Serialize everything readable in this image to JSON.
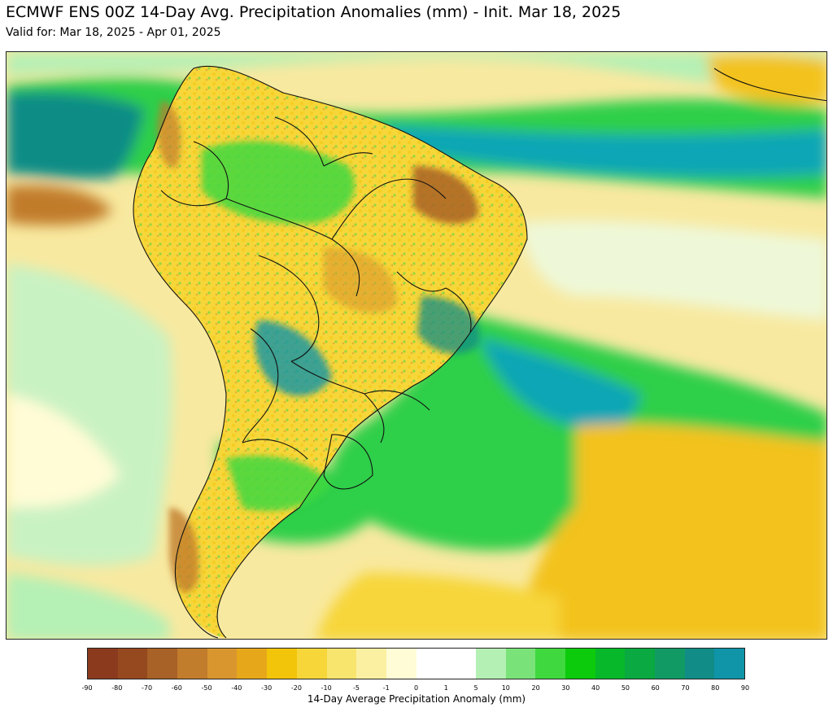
{
  "title": "ECMWF ENS 00Z 14-Day Avg. Precipitation Anomalies (mm) - Init. Mar 18, 2025",
  "subtitle": "Valid for: Mar 18, 2025 - Apr 01, 2025",
  "map": {
    "region": "South America",
    "palette": {
      "ocean_dry_light": "#f5e98e",
      "dry": "#f3c21d",
      "very_dry": "#8c3a1d",
      "wet_light": "#b5f0b5",
      "wet": "#3ad13a",
      "very_wet": "#0c9a8c",
      "extreme_wet": "#0aa6b6",
      "near_zero": "#ffffff",
      "border": "#111111"
    }
  },
  "colorbar": {
    "label": "14-Day Average Precipitation Anomaly (mm)",
    "ticks": [
      "-90",
      "-80",
      "-70",
      "-60",
      "-50",
      "-40",
      "-30",
      "-20",
      "-10",
      "-5",
      "-1",
      "0",
      "1",
      "5",
      "10",
      "20",
      "30",
      "40",
      "50",
      "60",
      "70",
      "80",
      "90"
    ],
    "colors": [
      "#8b3a1e",
      "#96481f",
      "#a86126",
      "#c17c2c",
      "#d9962e",
      "#e6a81a",
      "#f2c40a",
      "#f7d63a",
      "#f8e56e",
      "#fbf0a1",
      "#fffcd6",
      "#ffffff",
      "#ffffff",
      "#b4efb4",
      "#79e379",
      "#3fd83f",
      "#0ccb0c",
      "#07b82a",
      "#0aa941",
      "#119a64",
      "#118c86",
      "#0f94a8",
      "#0aa8c2"
    ]
  }
}
